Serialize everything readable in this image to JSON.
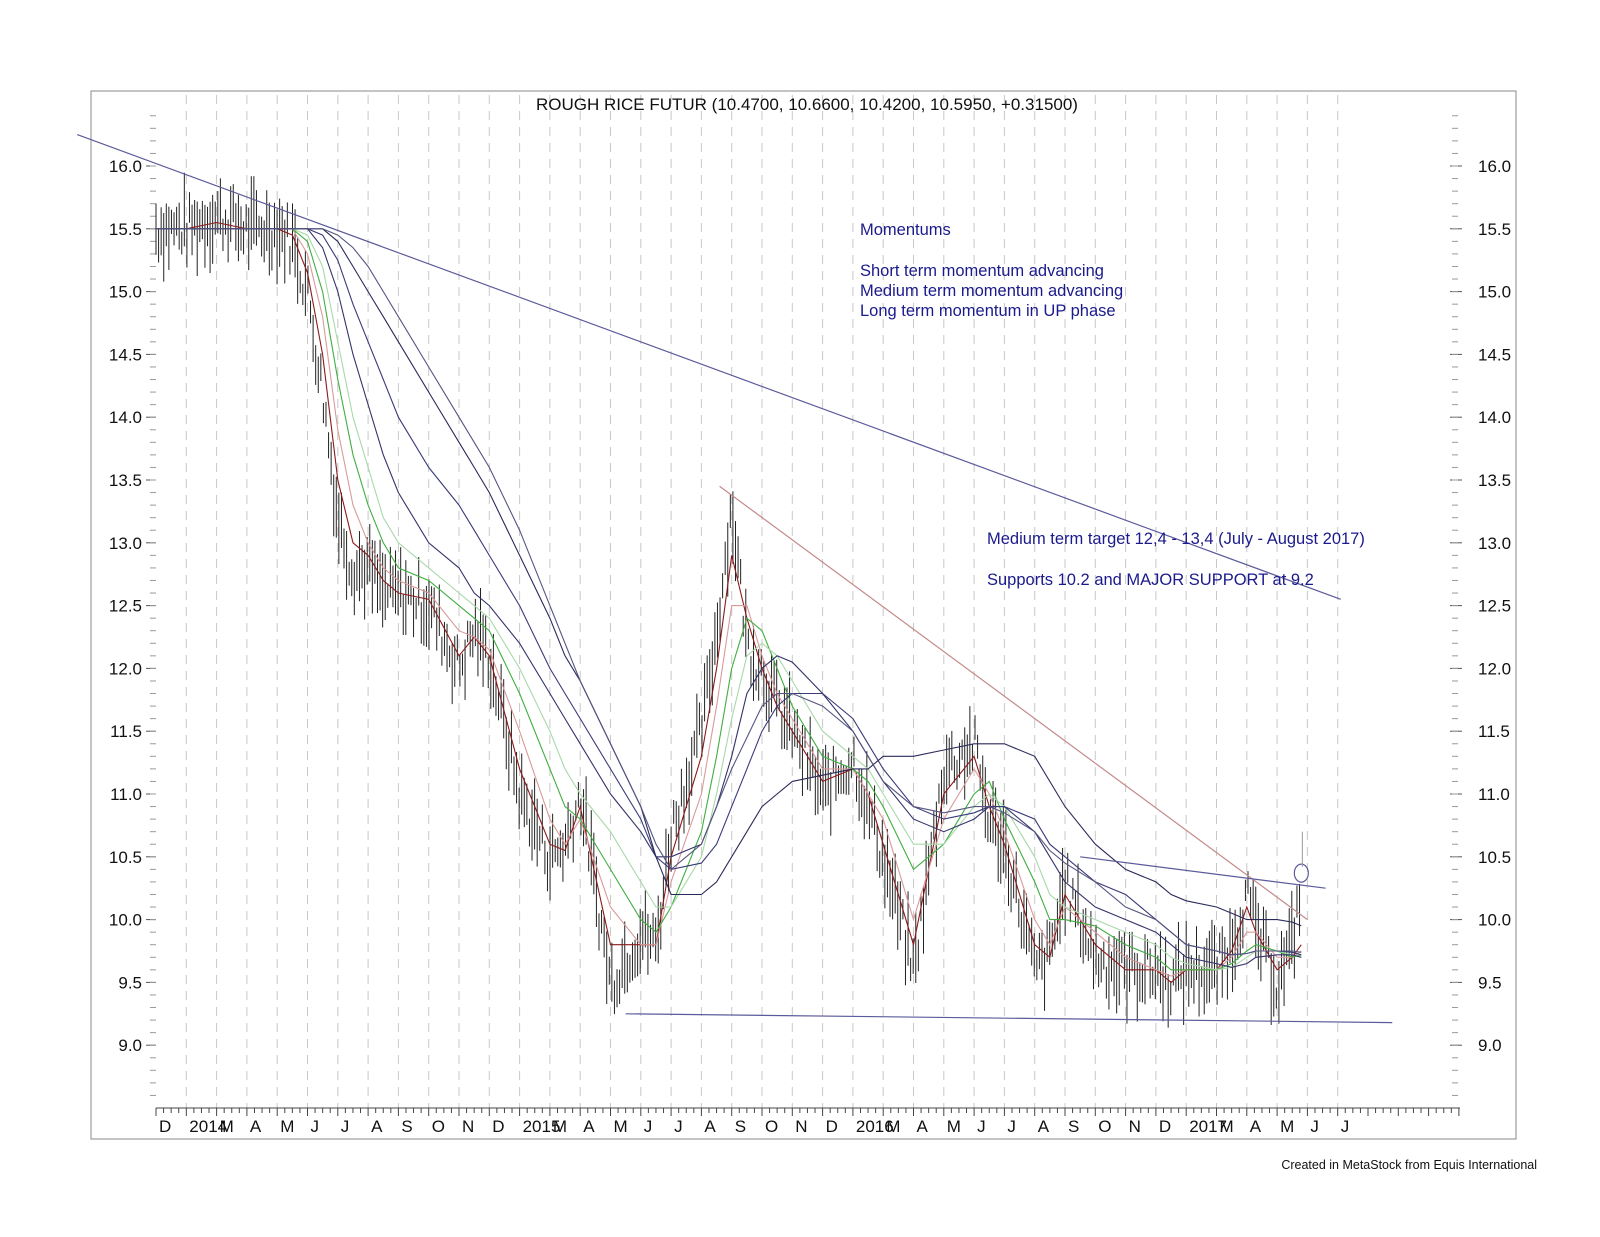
{
  "chart_data": {
    "type": "line",
    "title": "ROUGH RICE FUTUR (10.4700, 10.6600, 10.4200, 10.5950, +0.31500)",
    "ylim": [
      8.5,
      16.5
    ],
    "y_ticks": [
      "16.0",
      "15.5",
      "15.0",
      "14.5",
      "14.0",
      "13.5",
      "13.0",
      "12.5",
      "12.0",
      "11.5",
      "11.0",
      "10.5",
      "10.0",
      "9.5",
      "9.0"
    ],
    "x_labels": [
      "D",
      "2014",
      "M",
      "A",
      "M",
      "J",
      "J",
      "A",
      "S",
      "O",
      "N",
      "D",
      "2015",
      "M",
      "A",
      "M",
      "J",
      "J",
      "A",
      "S",
      "O",
      "N",
      "D",
      "2016",
      "M",
      "A",
      "M",
      "J",
      "J",
      "A",
      "S",
      "O",
      "N",
      "D",
      "2017",
      "M",
      "A",
      "M",
      "J",
      "J"
    ],
    "grid": "vertical-dashed",
    "price_series": {
      "name": "",
      "color": "#222222",
      "t": [
        0,
        1,
        2,
        3,
        4,
        4.5,
        5,
        5.5,
        6,
        6.5,
        7,
        7.5,
        8,
        9,
        10,
        10.5,
        11,
        12,
        13,
        13.5,
        14,
        15,
        16,
        16.5,
        17,
        18,
        18.5,
        19,
        19.5,
        20,
        20.5,
        21,
        22,
        23,
        23.5,
        24,
        25,
        26,
        27,
        27.5,
        28,
        29,
        29.5,
        30,
        31,
        32,
        33,
        33.5,
        34,
        35,
        35.5,
        36,
        36.3,
        37,
        37.5,
        37.8
      ],
      "close": [
        15.5,
        15.5,
        15.6,
        15.5,
        15.5,
        15.4,
        15.0,
        14.2,
        13.2,
        12.8,
        12.8,
        12.6,
        12.6,
        12.5,
        12.0,
        12.3,
        12.1,
        11.0,
        10.5,
        10.6,
        11.0,
        9.5,
        9.9,
        9.8,
        10.7,
        11.5,
        12.3,
        13.3,
        12.2,
        12.0,
        11.7,
        11.5,
        11.0,
        11.3,
        10.9,
        10.5,
        9.6,
        11.2,
        11.4,
        10.8,
        10.6,
        9.6,
        9.7,
        10.3,
        9.7,
        9.6,
        9.6,
        9.5,
        9.6,
        9.6,
        9.8,
        10.2,
        9.9,
        9.5,
        9.8,
        10.3
      ]
    },
    "moving_averages": [
      {
        "color": "#8b1a1a",
        "values": [
          15.5,
          15.5,
          15.55,
          15.5,
          15.5,
          15.45,
          15.15,
          14.5,
          13.5,
          13.0,
          12.9,
          12.7,
          12.6,
          12.55,
          12.1,
          12.25,
          12.1,
          11.2,
          10.6,
          10.55,
          10.9,
          9.8,
          9.8,
          9.8,
          10.5,
          11.3,
          12.0,
          12.9,
          12.4,
          12.0,
          11.7,
          11.5,
          11.1,
          11.2,
          11.0,
          10.6,
          9.8,
          11.0,
          11.3,
          10.9,
          10.6,
          9.8,
          9.7,
          10.2,
          9.8,
          9.6,
          9.6,
          9.5,
          9.6,
          9.6,
          9.75,
          10.1,
          9.9,
          9.6,
          9.7,
          9.8
        ]
      },
      {
        "color": "#d99a9a",
        "values": [
          15.5,
          15.5,
          15.5,
          15.5,
          15.5,
          15.5,
          15.3,
          14.8,
          13.9,
          13.3,
          13.0,
          12.8,
          12.7,
          12.6,
          12.3,
          12.25,
          12.15,
          11.5,
          10.8,
          10.6,
          10.8,
          10.1,
          9.8,
          9.8,
          10.3,
          11.0,
          11.7,
          12.5,
          12.5,
          12.1,
          11.8,
          11.6,
          11.2,
          11.2,
          11.0,
          10.8,
          10.0,
          10.8,
          11.2,
          11.0,
          10.7,
          10.0,
          9.8,
          10.1,
          9.9,
          9.7,
          9.6,
          9.55,
          9.6,
          9.6,
          9.7,
          9.9,
          9.9,
          9.7,
          9.7,
          9.75
        ]
      },
      {
        "color": "#3fae3f",
        "values": [
          15.5,
          15.5,
          15.5,
          15.5,
          15.5,
          15.5,
          15.4,
          15.0,
          14.3,
          13.7,
          13.3,
          13.0,
          12.8,
          12.7,
          12.5,
          12.4,
          12.3,
          11.8,
          11.2,
          10.9,
          10.8,
          10.4,
          10.0,
          9.9,
          10.1,
          10.7,
          11.3,
          12.0,
          12.4,
          12.3,
          12.0,
          11.7,
          11.3,
          11.2,
          11.1,
          10.9,
          10.4,
          10.6,
          11.0,
          11.1,
          10.8,
          10.3,
          10.0,
          10.0,
          9.95,
          9.8,
          9.7,
          9.6,
          9.6,
          9.6,
          9.65,
          9.75,
          9.8,
          9.75,
          9.7,
          9.72
        ]
      },
      {
        "color": "#a8d8a8",
        "values": [
          15.5,
          15.5,
          15.5,
          15.5,
          15.5,
          15.5,
          15.45,
          15.2,
          14.6,
          14.0,
          13.6,
          13.2,
          13.0,
          12.8,
          12.6,
          12.5,
          12.4,
          12.0,
          11.5,
          11.2,
          11.0,
          10.7,
          10.3,
          10.1,
          10.1,
          10.5,
          11.0,
          11.6,
          12.1,
          12.2,
          12.1,
          11.9,
          11.5,
          11.3,
          11.2,
          11.0,
          10.6,
          10.6,
          10.9,
          11.0,
          10.9,
          10.5,
          10.2,
          10.1,
          10.0,
          9.9,
          9.8,
          9.7,
          9.65,
          9.6,
          9.62,
          9.7,
          9.75,
          9.75,
          9.72,
          9.7
        ]
      },
      {
        "color": "#33336b",
        "values": [
          15.5,
          15.5,
          15.5,
          15.5,
          15.5,
          15.5,
          15.5,
          15.35,
          15.0,
          14.5,
          14.1,
          13.7,
          13.4,
          13.0,
          12.8,
          12.6,
          12.5,
          12.2,
          11.8,
          11.6,
          11.4,
          11.0,
          10.7,
          10.5,
          10.5,
          10.6,
          10.9,
          11.3,
          11.8,
          12.0,
          12.1,
          12.05,
          11.8,
          11.5,
          11.3,
          11.1,
          10.8,
          10.7,
          10.8,
          10.9,
          10.9,
          10.7,
          10.5,
          10.3,
          10.1,
          10.0,
          9.9,
          9.8,
          9.7,
          9.65,
          9.62,
          9.65,
          9.7,
          9.72,
          9.72,
          9.7
        ]
      },
      {
        "color": "#3a3a7a",
        "values": [
          15.5,
          15.5,
          15.5,
          15.5,
          15.5,
          15.5,
          15.5,
          15.45,
          15.25,
          14.9,
          14.6,
          14.3,
          14.0,
          13.6,
          13.3,
          13.1,
          12.9,
          12.5,
          12.0,
          11.8,
          11.6,
          11.2,
          10.8,
          10.5,
          10.4,
          10.45,
          10.6,
          10.9,
          11.2,
          11.5,
          11.7,
          11.8,
          11.8,
          11.6,
          11.4,
          11.2,
          10.9,
          10.8,
          10.85,
          10.9,
          10.9,
          10.8,
          10.6,
          10.5,
          10.3,
          10.2,
          10.0,
          9.9,
          9.8,
          9.75,
          9.72,
          9.73,
          9.75,
          9.75,
          9.74,
          9.72
        ]
      },
      {
        "color": "#2a2a5a",
        "values": [
          15.5,
          15.5,
          15.5,
          15.5,
          15.5,
          15.5,
          15.5,
          15.5,
          15.4,
          15.2,
          15.0,
          14.8,
          14.6,
          14.2,
          13.8,
          13.6,
          13.4,
          12.9,
          12.4,
          12.1,
          11.9,
          11.4,
          10.9,
          10.5,
          10.2,
          10.2,
          10.3,
          10.5,
          10.7,
          10.9,
          11.0,
          11.1,
          11.15,
          11.2,
          11.2,
          11.3,
          11.3,
          11.35,
          11.4,
          11.4,
          11.4,
          11.3,
          11.1,
          10.9,
          10.6,
          10.4,
          10.3,
          10.2,
          10.15,
          10.1,
          10.05,
          10.0,
          10.0,
          10.0,
          9.98,
          9.95
        ]
      },
      {
        "color": "#555580",
        "values": [
          15.5,
          15.5,
          15.5,
          15.5,
          15.5,
          15.5,
          15.5,
          15.5,
          15.45,
          15.35,
          15.2,
          15.0,
          14.8,
          14.4,
          14.0,
          13.8,
          13.6,
          13.1,
          12.5,
          12.2,
          11.9,
          11.4,
          10.9,
          10.6,
          10.4,
          10.6,
          10.9,
          11.2,
          11.45,
          11.7,
          11.8,
          11.8,
          11.7,
          11.5,
          11.3,
          11.1,
          10.9,
          10.85,
          10.9,
          10.9,
          10.85,
          10.7,
          10.55,
          10.45,
          10.3,
          10.1,
          10.0,
          9.9,
          9.8,
          9.75,
          9.72,
          9.73,
          9.75,
          9.75,
          9.75,
          9.74
        ]
      }
    ],
    "trendlines": [
      {
        "color": "#5b5b9b",
        "from": [
          -2.6,
          16.25
        ],
        "to": [
          39.1,
          12.55
        ]
      },
      {
        "color": "#c48a8a",
        "from": [
          18.6,
          13.45
        ],
        "to": [
          38.0,
          10.0
        ]
      },
      {
        "color": "#5b5b9b",
        "from": [
          15.5,
          9.25
        ],
        "to": [
          40.8,
          9.18
        ]
      },
      {
        "color": "#5b5b9b",
        "from": [
          30.5,
          10.5
        ],
        "to": [
          38.6,
          10.25
        ]
      }
    ],
    "marker": {
      "t": 37.8,
      "value": 10.37
    },
    "annotations": {
      "momentum_title": "Momentums",
      "momentum_short": "Short term momentum advancing",
      "momentum_medium": "Medium term momentum advancing",
      "momentum_long": "Long term momentum in UP phase",
      "target": "Medium term target 12,4 - 13,4 (July - August 2017)",
      "supports": "Supports 10.2 and MAJOR SUPPORT at 9.2"
    },
    "credit": "Created in MetaStock from Equis International"
  }
}
